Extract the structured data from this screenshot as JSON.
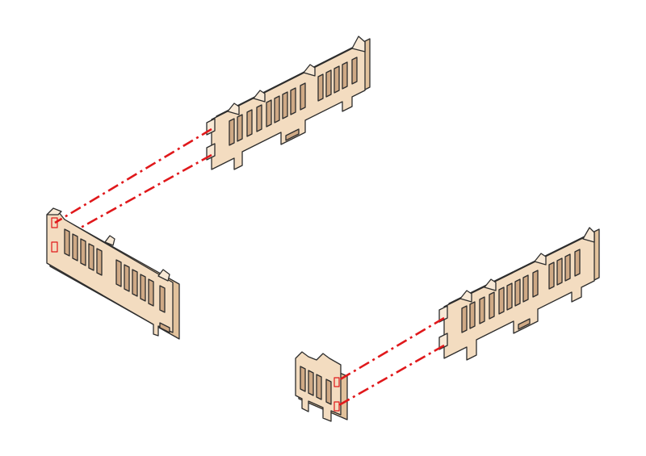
{
  "colors": {
    "background": "#ffffff",
    "wood_face": "#f3dcc0",
    "wood_top": "#f8e9d6",
    "wood_side": "#e2c29c",
    "wood_slot": "#cfa985",
    "outline": "#2d2d2d",
    "connector": "#e0181b"
  },
  "fence_parts": [
    {
      "name": "fence-panel-back-long"
    },
    {
      "name": "fence-panel-left-long"
    },
    {
      "name": "fence-panel-right-long"
    },
    {
      "name": "fence-panel-front-short"
    }
  ],
  "connectors": [
    {
      "name": "joint-guide-back-left"
    },
    {
      "name": "joint-guide-right-front"
    }
  ]
}
